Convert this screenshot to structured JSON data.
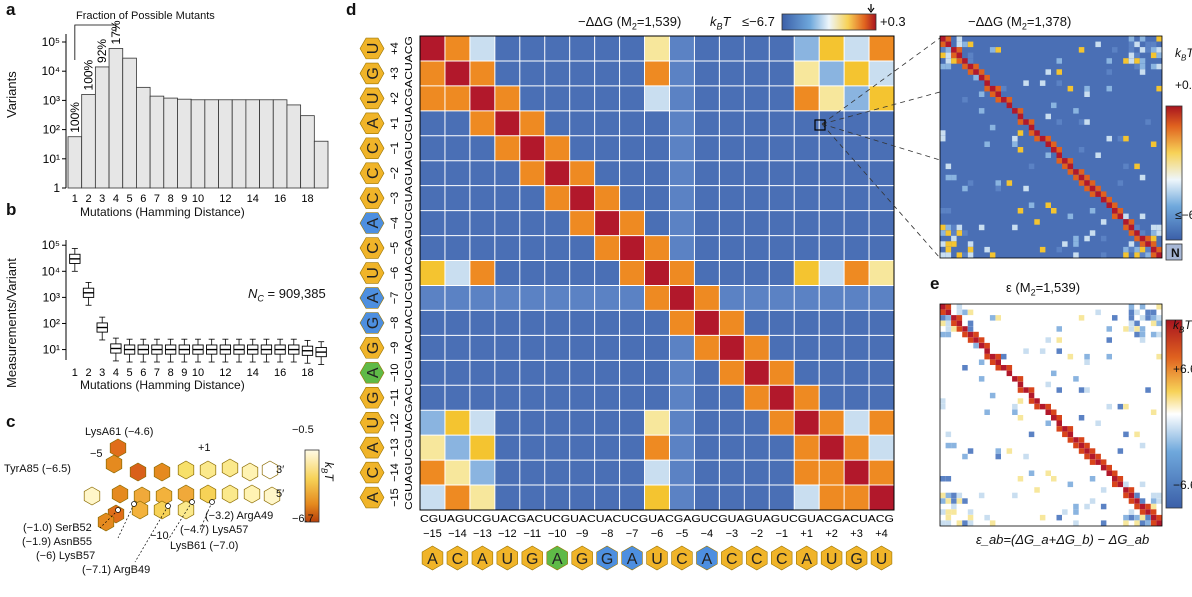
{
  "panels": {
    "a": {
      "label": "a",
      "fraction_title": "Fraction of Possible Mutants",
      "ylabel": "Variants",
      "xlabel": "Mutations (Hamming Distance)",
      "yticks": [
        "1",
        "10¹",
        "10²",
        "10³",
        "10⁴",
        "10⁵"
      ],
      "xticks": [
        "1",
        "2",
        "3",
        "4",
        "5",
        "6",
        "7",
        "8",
        "9",
        "10",
        "12",
        "14",
        "16",
        "18"
      ],
      "pct_labels": [
        "100%",
        "100%",
        "92%",
        "17%"
      ]
    },
    "b": {
      "label": "b",
      "ylabel": "Measurements/Variant",
      "xlabel": "Mutations (Hamming Distance)",
      "yticks": [
        "10¹",
        "10²",
        "10³",
        "10⁴",
        "10⁵"
      ],
      "xticks": [
        "1",
        "2",
        "3",
        "4",
        "5",
        "6",
        "7",
        "8",
        "9",
        "10",
        "12",
        "14",
        "16",
        "18"
      ],
      "nc_label": "N",
      "nc_sub": "C",
      "nc_value": "= 909,385"
    },
    "c": {
      "label": "c",
      "colorbar_top": "−0.5",
      "colorbar_bottom": "−6.7",
      "colorbar_unit": "k",
      "colorbar_unit_sub": "B",
      "colorbar_unit_tail": "T",
      "pos_labels": [
        "−5",
        "+1",
        "3′",
        "5′",
        "−10"
      ],
      "residues": [
        "LysA61 (−4.6)",
        "TyrA85 (−6.5)",
        "(−1.0) SerB52",
        "(−1.9) AsnB55",
        "(−6) LysB57",
        "(−7.1) ArgB49",
        "LysB61 (−7.0)",
        "(−4.7) LysA57",
        "(−3.2) ArgA49"
      ]
    },
    "d": {
      "label": "d",
      "title": "−ΔΔG (M",
      "title_sub": "2",
      "title_tail": "=1,539)",
      "cb_unit": "k",
      "cb_unit_sub": "B",
      "cb_unit_tail": "T",
      "cb_min": "≤−6.7",
      "cb_max": "+0.3",
      "positions": [
        "−15",
        "−14",
        "−13",
        "−12",
        "−11",
        "−10",
        "−9",
        "−8",
        "−7",
        "−6",
        "−5",
        "−4",
        "−3",
        "−2",
        "−1",
        "+1",
        "+2",
        "+3",
        "+4"
      ],
      "sequence": "CGUAGUCGUACGACUCGUACUACUCGUACGAGUCGUAGUAGUCGUACGACUACG",
      "bases": [
        "A",
        "C",
        "A",
        "U",
        "G",
        "A",
        "G",
        "G",
        "A",
        "U",
        "C",
        "A",
        "C",
        "C",
        "C",
        "A",
        "U",
        "G",
        "U"
      ]
    },
    "d_zoom": {
      "title": "−ΔΔG (M",
      "title_sub": "2",
      "title_tail": "=1,378)",
      "cb_max": "+0.3",
      "cb_min": "≤−6.7",
      "cb_unit": "k",
      "cb_unit_sub": "B",
      "cb_unit_tail": "T",
      "na_label": "N"
    },
    "e": {
      "label": "e",
      "title": "ε (M",
      "title_sub": "2",
      "title_tail": "=1,539)",
      "cb_max": "+6.6",
      "cb_min": "−6.6",
      "cb_unit": "k",
      "cb_unit_sub": "B",
      "cb_unit_tail": "T",
      "formula": "ε_ab=(ΔG_a+ΔG_b) − ΔG_ab"
    }
  },
  "colors": {
    "heat_blue": "#4a6fb5",
    "heat_red": "#b2182b",
    "heat_yellow": "#f4c430",
    "base_A": "#f0b429",
    "base_C_blue": "#4d8fe0",
    "base_G_green": "#5fba47"
  },
  "chart_data": [
    {
      "type": "bar",
      "title": "",
      "xlabel": "Mutations (Hamming Distance)",
      "ylabel": "Variants",
      "yscale": "log",
      "ylim": [
        1,
        100000
      ],
      "categories": [
        "1",
        "2",
        "3",
        "4",
        "5",
        "6",
        "7",
        "8",
        "9",
        "10",
        "11",
        "12",
        "13",
        "14",
        "15",
        "16",
        "17",
        "18",
        "19"
      ],
      "values": [
        57,
        1596,
        14000,
        60000,
        28000,
        2800,
        1400,
        1200,
        1100,
        1050,
        1050,
        1050,
        1050,
        1050,
        1050,
        1050,
        700,
        300,
        40
      ]
    },
    {
      "type": "box",
      "title": "",
      "xlabel": "Mutations (Hamming Distance)",
      "ylabel": "Measurements/Variant",
      "yscale": "log",
      "categories": [
        "1",
        "2",
        "3",
        "4",
        "5",
        "6",
        "7",
        "8",
        "9",
        "10",
        "11",
        "12",
        "13",
        "14",
        "15",
        "16",
        "17",
        "18",
        "19"
      ],
      "medians": [
        30000,
        1500,
        70,
        11,
        10,
        10,
        10,
        10,
        10,
        10,
        10,
        10,
        10,
        10,
        10,
        10,
        10,
        9,
        8
      ]
    }
  ]
}
